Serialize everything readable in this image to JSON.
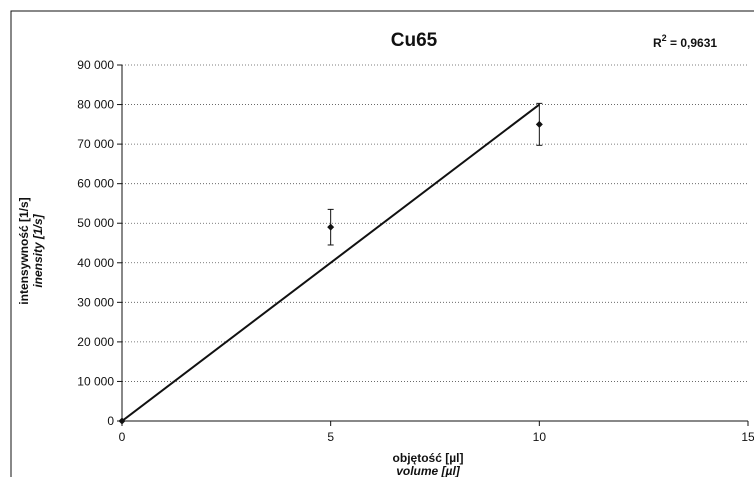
{
  "chart_data": {
    "type": "scatter",
    "title": "Cu65",
    "annotation": {
      "prefix": "R",
      "sup": "2",
      "suffix": " = 0,9631"
    },
    "xlabel": "objętość [µl]",
    "xlabel_en": "volume [µl]",
    "ylabel": "intensywność [1/s]",
    "ylabel_en": "inensity [1/s]",
    "xlim": [
      0,
      15
    ],
    "ylim": [
      0,
      90000
    ],
    "x_ticks": [
      0,
      5,
      10,
      15
    ],
    "y_ticks": [
      0,
      10000,
      20000,
      30000,
      40000,
      50000,
      60000,
      70000,
      80000,
      90000
    ],
    "y_tick_labels": [
      "0",
      "10 000",
      "20 000",
      "30 000",
      "40 000",
      "50 000",
      "60 000",
      "70 000",
      "80 000",
      "90 000"
    ],
    "grid": {
      "horizontal": true,
      "style": "dotted"
    },
    "series": [
      {
        "points": [
          {
            "x": 0,
            "y": 0,
            "err": 0
          },
          {
            "x": 5,
            "y": 49000,
            "err": 4500
          },
          {
            "x": 10,
            "y": 75000,
            "err": 5300
          }
        ],
        "marker": "diamond",
        "color": "#111111"
      }
    ],
    "trendline": {
      "x": [
        0,
        10
      ],
      "y": [
        0,
        80000
      ],
      "color": "#111111"
    }
  }
}
